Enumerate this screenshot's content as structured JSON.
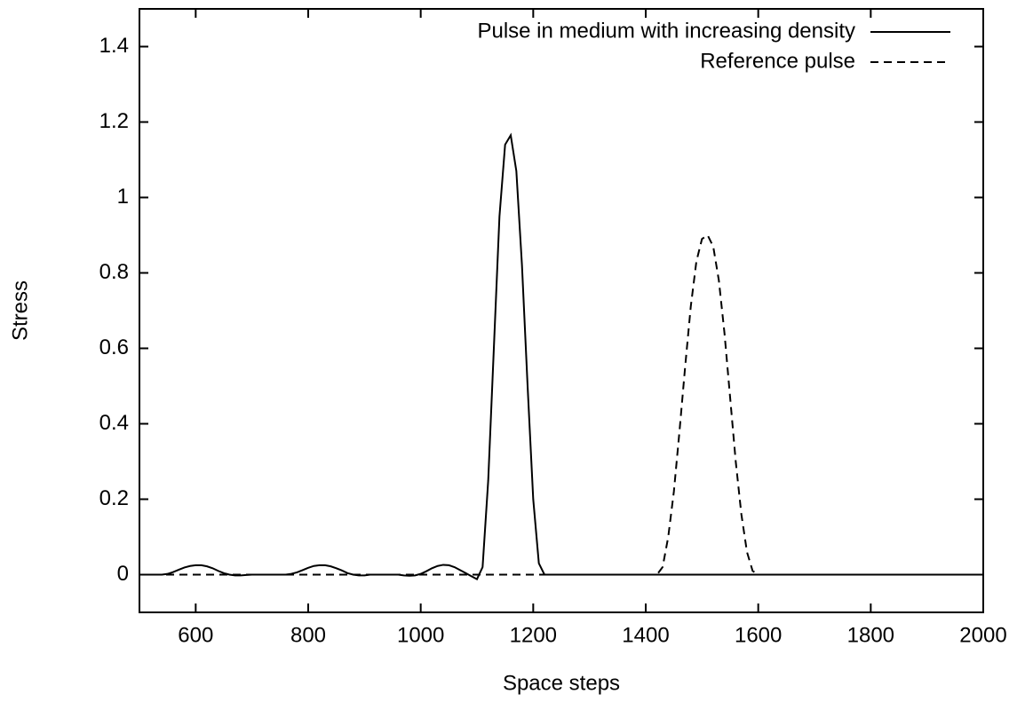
{
  "chart_data": {
    "type": "line",
    "x_label": "Space steps",
    "y_label": "Stress",
    "x": [
      500,
      510,
      520,
      530,
      540,
      550,
      560,
      570,
      580,
      590,
      600,
      610,
      620,
      630,
      640,
      650,
      660,
      670,
      680,
      690,
      700,
      710,
      720,
      730,
      740,
      750,
      760,
      770,
      780,
      790,
      800,
      810,
      820,
      830,
      840,
      850,
      860,
      870,
      880,
      890,
      900,
      910,
      920,
      930,
      940,
      950,
      960,
      970,
      980,
      990,
      1000,
      1010,
      1020,
      1030,
      1040,
      1050,
      1060,
      1070,
      1080,
      1090,
      1100,
      1110,
      1120,
      1130,
      1140,
      1150,
      1160,
      1170,
      1180,
      1190,
      1200,
      1210,
      1220,
      1230,
      1240,
      1250,
      1260,
      1270,
      1280,
      1290,
      1300,
      1310,
      1320,
      1330,
      1340,
      1350,
      1360,
      1370,
      1380,
      1390,
      1400,
      1410,
      1420,
      1430,
      1440,
      1450,
      1460,
      1470,
      1480,
      1490,
      1500,
      1510,
      1520,
      1530,
      1540,
      1550,
      1560,
      1570,
      1580,
      1590,
      1600,
      1610,
      1620,
      1630,
      1640,
      1650,
      1660,
      1670,
      1680,
      1690,
      1700,
      1710,
      1720,
      1730,
      1740,
      1750,
      1760,
      1770,
      1780,
      1790,
      1800,
      1810,
      1820,
      1830,
      1840,
      1850,
      1860,
      1870,
      1880,
      1890,
      1900,
      1910,
      1920,
      1930,
      1940,
      1950,
      1960,
      1970,
      1980,
      1990,
      2000
    ],
    "series": [
      {
        "name": "Pulse in medium with increasing density",
        "color": "#000000",
        "style": "solid",
        "values": [
          0,
          0,
          0,
          0,
          0,
          0.002,
          0.007,
          0.013,
          0.019,
          0.023,
          0.025,
          0.025,
          0.022,
          0.017,
          0.01,
          0.004,
          0,
          -0.002,
          -0.002,
          -0.001,
          0,
          0,
          0,
          0,
          0,
          0,
          0,
          0.002,
          0.006,
          0.012,
          0.018,
          0.023,
          0.025,
          0.025,
          0.022,
          0.017,
          0.011,
          0.004,
          0,
          -0.002,
          -0.002,
          0,
          0,
          0,
          0,
          0,
          0,
          -0.002,
          -0.003,
          -0.002,
          0.002,
          0.009,
          0.017,
          0.023,
          0.026,
          0.025,
          0.02,
          0.012,
          0.004,
          -0.004,
          -0.012,
          0.02,
          0.25,
          0.6,
          0.95,
          1.14,
          1.165,
          1.07,
          0.82,
          0.5,
          0.2,
          0.03,
          0,
          0,
          0,
          0,
          0,
          0,
          0,
          0,
          0,
          0,
          0,
          0,
          0,
          0,
          0,
          0,
          0,
          0,
          0,
          0,
          0,
          0,
          0,
          0,
          0,
          0,
          0,
          0,
          0,
          0,
          0,
          0,
          0,
          0,
          0,
          0,
          0,
          0,
          0,
          0,
          0,
          0,
          0,
          0,
          0,
          0,
          0,
          0,
          0,
          0,
          0,
          0,
          0,
          0,
          0,
          0,
          0,
          0,
          0,
          0,
          0,
          0,
          0,
          0,
          0,
          0,
          0,
          0,
          0,
          0,
          0,
          0,
          0,
          0,
          0,
          0,
          0,
          0,
          0
        ]
      },
      {
        "name": "Reference pulse",
        "color": "#000000",
        "style": "dashed",
        "values": [
          0,
          0,
          0,
          0,
          0,
          0,
          0,
          0,
          0,
          0,
          0,
          0,
          0,
          0,
          0,
          0,
          0,
          0,
          0,
          0,
          0,
          0,
          0,
          0,
          0,
          0,
          0,
          0,
          0,
          0,
          0,
          0,
          0,
          0,
          0,
          0,
          0,
          0,
          0,
          0,
          0,
          0,
          0,
          0,
          0,
          0,
          0,
          0,
          0,
          0,
          0,
          0,
          0,
          0,
          0,
          0,
          0,
          0,
          0,
          0,
          0,
          0,
          0,
          0,
          0,
          0,
          0,
          0,
          0,
          0,
          0,
          0,
          0,
          0,
          0,
          0,
          0,
          0,
          0,
          0,
          0,
          0,
          0,
          0,
          0,
          0,
          0,
          0,
          0,
          0,
          0,
          0,
          0,
          0.02,
          0.1,
          0.22,
          0.38,
          0.55,
          0.71,
          0.83,
          0.89,
          0.9,
          0.87,
          0.78,
          0.64,
          0.47,
          0.3,
          0.16,
          0.06,
          0.01,
          0,
          0,
          0,
          0,
          0,
          0,
          0,
          0,
          0,
          0,
          0,
          0,
          0,
          0,
          0,
          0,
          0,
          0,
          0,
          0,
          0,
          0,
          0,
          0,
          0,
          0,
          0,
          0,
          0,
          0,
          0,
          0,
          0,
          0,
          0,
          0,
          0,
          0,
          0,
          0,
          0
        ]
      }
    ],
    "xlim": [
      500,
      2000
    ],
    "xticks": [
      600,
      800,
      1000,
      1200,
      1400,
      1600,
      1800,
      2000
    ],
    "ylim": [
      -0.1,
      1.5
    ],
    "yticks": [
      0,
      0.2,
      0.4,
      0.6,
      0.8,
      1,
      1.2,
      1.4
    ],
    "grid": false,
    "legend": "top-right"
  }
}
